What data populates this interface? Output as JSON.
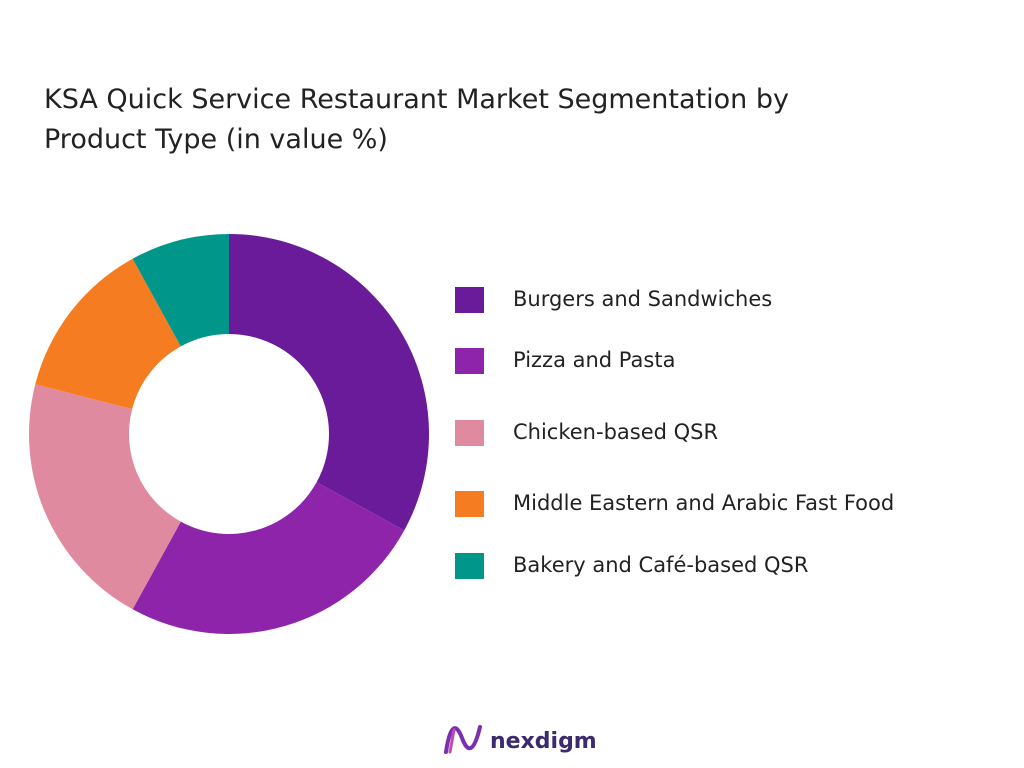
{
  "chart_data": {
    "type": "donut",
    "title": "KSA Quick Service Restaurant Market Segmentation by\nProduct Type  (in value %)",
    "categories": [
      "Burgers and Sandwiches",
      "Pizza and Pasta",
      "Chicken-based QSR",
      "Middle Eastern and Arabic Fast Food",
      "Bakery and Café-based QSR"
    ],
    "values": [
      33,
      25,
      21,
      13,
      8
    ],
    "colors": [
      "#6a1b9a",
      "#8e24aa",
      "#e08aa0",
      "#f57c20",
      "#00968a"
    ],
    "legend": "right"
  },
  "logo": {
    "text": "nexdigm"
  }
}
